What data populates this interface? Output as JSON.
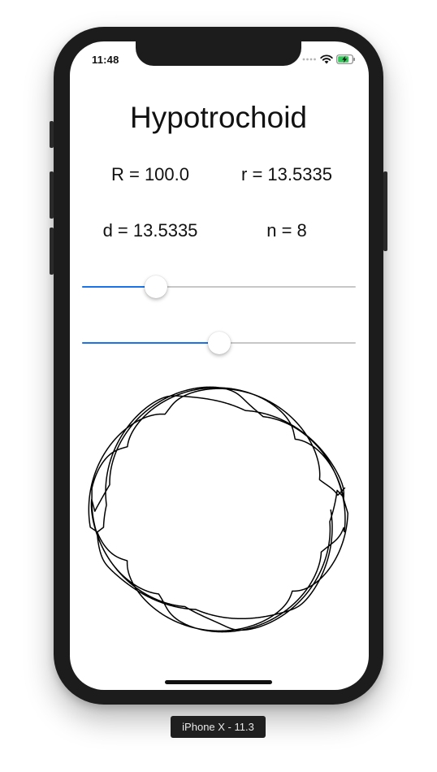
{
  "status_bar": {
    "time": "11:48",
    "icons": [
      "signal-dots-icon",
      "wifi-icon",
      "battery-charging-icon"
    ]
  },
  "app": {
    "title": "Hypotrochoid",
    "params": {
      "R": "R = 100.0",
      "r": "r = 13.5335",
      "d": "d = 13.5335",
      "n": "n = 8"
    },
    "sliders": [
      {
        "name": "r",
        "fraction": 0.27
      },
      {
        "name": "d",
        "fraction": 0.5
      }
    ],
    "curve": {
      "R": 100.0,
      "r": 13.5335,
      "d": 13.5335,
      "n": 8,
      "color": "#000000"
    }
  },
  "device_label": "iPhone X - 11.3",
  "colors": {
    "accent": "#1a73e8",
    "track": "#c7c7c7",
    "bezel": "#1c1c1c"
  }
}
